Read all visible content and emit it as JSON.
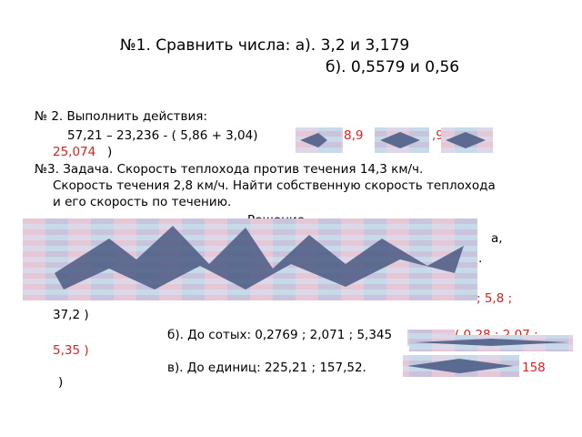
{
  "title": {
    "line1": "№1. Сравнить числа: а). 3,2  и  3,179",
    "line2": "б).  0,5579  и   0,56"
  },
  "task2": {
    "heading": "№ 2.     Выполнить  действия:",
    "expression": "57,21 – 23,236 - ( 5,86  + 3,04)",
    "answer_parts": [
      "8,9",
      ",9",
      "25,074"
    ],
    "close": ")"
  },
  "task3": {
    "lines": [
      "№3.  Задача.    Скорость теплохода против течения  14,3 км/ч.",
      "Скорость течения  2,8 км/ч. Найти собственную скорость теплохода",
      "и его скорость по течению."
    ],
    "solution": "Решение",
    "fragments": [
      "а,",
      "."
    ]
  },
  "task4": {
    "a_answer": "; 5,8 ;",
    "a_close": "37,2 )",
    "b_text": "б). До сотых:  0,2769 ;  2,071 ;  5,345",
    "b_answer": "( 0,28 ; 2,07 ;",
    "b_close": "5,35 )",
    "c_text": "в).  До единиц:  225,21 ;  157,52.",
    "c_answer": "158",
    "c_close": ")"
  }
}
